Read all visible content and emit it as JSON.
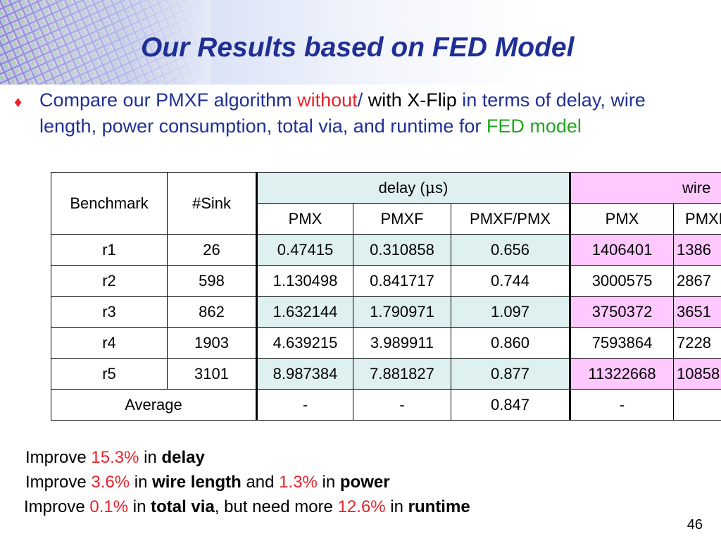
{
  "slide": {
    "title": "Our Results based on FED Model",
    "page_number": "46"
  },
  "bullet": {
    "part1": "Compare our PMXF algorithm ",
    "part2": "without",
    "part3": "/",
    "part4": " with X-Flip ",
    "part5": "in terms of delay, wire length, power consumption, total via, and runtime for ",
    "part6": "FED model"
  },
  "table": {
    "header1": {
      "benchmark": "Benchmark",
      "sink": "#Sink",
      "delay_prefix": "delay (",
      "delay_mu": "μ",
      "delay_suffix": "s)",
      "wire": "wire"
    },
    "subheaders": [
      "PMX",
      "PMXF",
      "PMXF/PMX",
      "PMX",
      "PMXF"
    ],
    "rows": [
      {
        "bench": "r1",
        "sink": "26",
        "pmx": "0.47415",
        "pmxf": "0.310858",
        "ratio": "0.656",
        "wire_pmx": "1406401",
        "wire_pmxf": "1386"
      },
      {
        "bench": "r2",
        "sink": "598",
        "pmx": "1.130498",
        "pmxf": "0.841717",
        "ratio": "0.744",
        "wire_pmx": "3000575",
        "wire_pmxf": "2867"
      },
      {
        "bench": "r3",
        "sink": "862",
        "pmx": "1.632144",
        "pmxf": "1.790971",
        "ratio": "1.097",
        "wire_pmx": "3750372",
        "wire_pmxf": "3651"
      },
      {
        "bench": "r4",
        "sink": "1903",
        "pmx": "4.639215",
        "pmxf": "3.989911",
        "ratio": "0.860",
        "wire_pmx": "7593864",
        "wire_pmxf": "7228"
      },
      {
        "bench": "r5",
        "sink": "3101",
        "pmx": "8.987384",
        "pmxf": "7.881827",
        "ratio": "0.877",
        "wire_pmx": "11322668",
        "wire_pmxf": "10858"
      }
    ],
    "average": {
      "label": "Average",
      "pmx": "-",
      "pmxf": "-",
      "ratio": "0.847",
      "wire_pmx": "-",
      "wire_pmxf": ""
    }
  },
  "summary": [
    {
      "pre": "Improve ",
      "pct": "15.3%",
      "mid": " in ",
      "kw": "delay"
    },
    {
      "pre": "Improve ",
      "pct": "3.6%",
      "mid": " in ",
      "kw": "wire length",
      "mid2": " and ",
      "pct2": "1.3%",
      "mid3": " in ",
      "kw2": "power"
    },
    {
      "pre": "Improve ",
      "pct": "0.1%",
      "mid": " in ",
      "kw": "total via",
      "mid2": ", but need more ",
      "pct2": "12.6%",
      "mid3": " in ",
      "kw2": "runtime"
    }
  ],
  "colors": {
    "title": "#1f2f96",
    "body_text": "#1f2f96",
    "highlight_red": "#e8232b",
    "highlight_green": "#1ea81e",
    "delay_band": "#dff0f0",
    "wire_band": "#ffc8ff"
  },
  "icons": {
    "bullet": "diamond-bullet-icon",
    "header_image": "chip-wafer-image"
  }
}
